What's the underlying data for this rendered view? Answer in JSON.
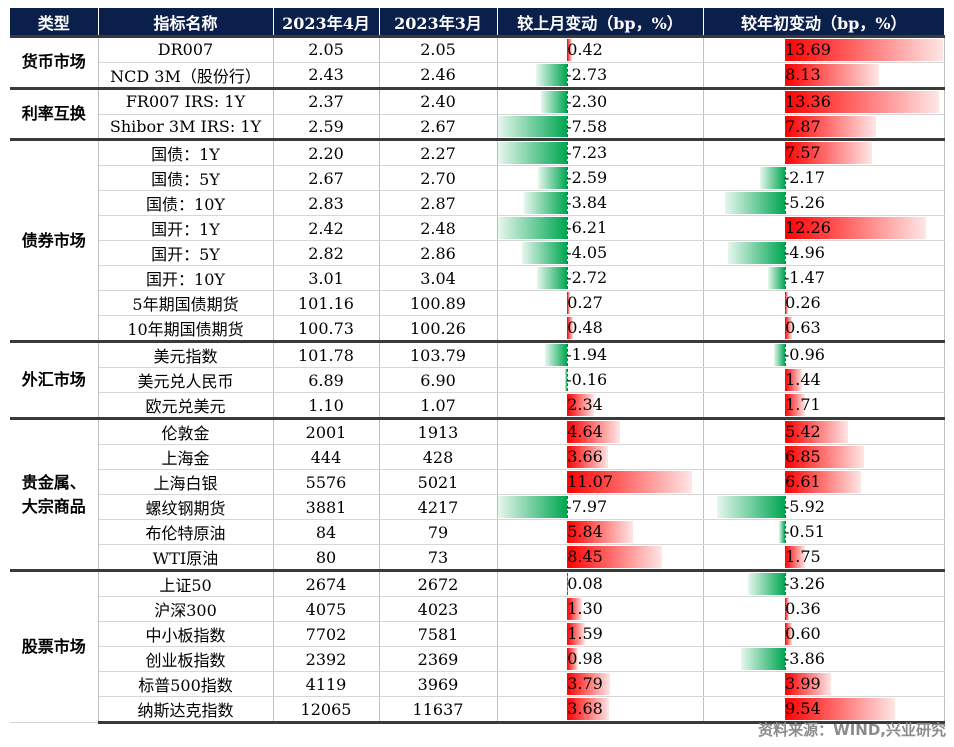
{
  "header": {
    "type": "类型",
    "name": "指标名称",
    "apr": "2023年4月",
    "mar": "2023年3月",
    "mom": "较上月变动（bp，%）",
    "ytd": "较年初变动（bp，%）"
  },
  "groups": [
    {
      "label": "货币市场",
      "rows": [
        {
          "name": "DR007",
          "apr": "2.05",
          "mar": "2.05",
          "mom": "0.42",
          "ytd": "13.69"
        },
        {
          "name": "NCD 3M（股份行）",
          "apr": "2.43",
          "mar": "2.46",
          "mom": "-2.73",
          "ytd": "8.13"
        }
      ]
    },
    {
      "label": "利率互换",
      "rows": [
        {
          "name": "FR007 IRS: 1Y",
          "apr": "2.37",
          "mar": "2.40",
          "mom": "-2.30",
          "ytd": "13.36"
        },
        {
          "name": "Shibor 3M IRS: 1Y",
          "apr": "2.59",
          "mar": "2.67",
          "mom": "-7.58",
          "ytd": "7.87"
        }
      ]
    },
    {
      "label": "债券市场",
      "rows": [
        {
          "name": "国债：1Y",
          "apr": "2.20",
          "mar": "2.27",
          "mom": "-7.23",
          "ytd": "7.57"
        },
        {
          "name": "国债：5Y",
          "apr": "2.67",
          "mar": "2.70",
          "mom": "-2.59",
          "ytd": "-2.17"
        },
        {
          "name": "国债：10Y",
          "apr": "2.83",
          "mar": "2.87",
          "mom": "-3.84",
          "ytd": "-5.26"
        },
        {
          "name": "国开：1Y",
          "apr": "2.42",
          "mar": "2.48",
          "mom": "-6.21",
          "ytd": "12.26"
        },
        {
          "name": "国开：5Y",
          "apr": "2.82",
          "mar": "2.86",
          "mom": "-4.05",
          "ytd": "-4.96"
        },
        {
          "name": "国开：10Y",
          "apr": "3.01",
          "mar": "3.04",
          "mom": "-2.72",
          "ytd": "-1.47"
        },
        {
          "name": "5年期国债期货",
          "apr": "101.16",
          "mar": "100.89",
          "mom": "0.27",
          "ytd": "0.26"
        },
        {
          "name": "10年期国债期货",
          "apr": "100.73",
          "mar": "100.26",
          "mom": "0.48",
          "ytd": "0.63"
        }
      ]
    },
    {
      "label": "外汇市场",
      "rows": [
        {
          "name": "美元指数",
          "apr": "101.78",
          "mar": "103.79",
          "mom": "-1.94",
          "ytd": "-0.96"
        },
        {
          "name": "美元兑人民币",
          "apr": "6.89",
          "mar": "6.90",
          "mom": "-0.16",
          "ytd": "1.44"
        },
        {
          "name": "欧元兑美元",
          "apr": "1.10",
          "mar": "1.07",
          "mom": "2.34",
          "ytd": "1.71"
        }
      ]
    },
    {
      "label": "贵金属、大宗商品",
      "rows": [
        {
          "name": "伦敦金",
          "apr": "2001",
          "mar": "1913",
          "mom": "4.64",
          "ytd": "5.42"
        },
        {
          "name": "上海金",
          "apr": "444",
          "mar": "428",
          "mom": "3.66",
          "ytd": "6.85"
        },
        {
          "name": "上海白银",
          "apr": "5576",
          "mar": "5021",
          "mom": "11.07",
          "ytd": "6.61"
        },
        {
          "name": "螺纹钢期货",
          "apr": "3881",
          "mar": "4217",
          "mom": "-7.97",
          "ytd": "-5.92"
        },
        {
          "name": "布伦特原油",
          "apr": "84",
          "mar": "79",
          "mom": "5.84",
          "ytd": "-0.51"
        },
        {
          "name": "WTI原油",
          "apr": "80",
          "mar": "73",
          "mom": "8.45",
          "ytd": "1.75"
        }
      ]
    },
    {
      "label": "股票市场",
      "rows": [
        {
          "name": "上证50",
          "apr": "2674",
          "mar": "2672",
          "mom": "0.08",
          "ytd": "-3.26"
        },
        {
          "name": "沪深300",
          "apr": "4075",
          "mar": "4023",
          "mom": "1.30",
          "ytd": "0.36"
        },
        {
          "name": "中小板指数",
          "apr": "7702",
          "mar": "7581",
          "mom": "1.59",
          "ytd": "0.60"
        },
        {
          "name": "创业板指数",
          "apr": "2392",
          "mar": "2369",
          "mom": "0.98",
          "ytd": "-3.86"
        },
        {
          "name": "标普500指数",
          "apr": "4119",
          "mar": "3969",
          "mom": "3.79",
          "ytd": "3.99"
        },
        {
          "name": "纳斯达克指数",
          "apr": "12065",
          "mar": "11637",
          "mom": "3.68",
          "ytd": "9.54"
        }
      ]
    }
  ],
  "colors": {
    "header_bg": "#0b1f4b",
    "positive": "#ff0000",
    "negative": "#00a651"
  },
  "footer": {
    "source": "资料来源：WIND,兴业研究"
  }
}
